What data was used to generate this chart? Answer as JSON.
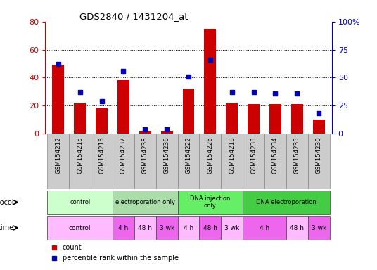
{
  "title": "GDS2840 / 1431204_at",
  "samples": [
    "GSM154212",
    "GSM154215",
    "GSM154216",
    "GSM154237",
    "GSM154238",
    "GSM154236",
    "GSM154222",
    "GSM154226",
    "GSM154218",
    "GSM154233",
    "GSM154234",
    "GSM154235",
    "GSM154230"
  ],
  "counts": [
    49,
    22,
    18,
    38,
    2,
    2,
    32,
    75,
    22,
    21,
    21,
    21,
    10
  ],
  "percentiles": [
    62,
    37,
    29,
    56,
    4,
    4,
    51,
    66,
    37,
    37,
    36,
    36,
    18
  ],
  "ylim_left": [
    0,
    80
  ],
  "ylim_right": [
    0,
    100
  ],
  "yticks_left": [
    0,
    20,
    40,
    60,
    80
  ],
  "yticks_right": [
    0,
    25,
    50,
    75,
    100
  ],
  "ytick_labels_right": [
    "0",
    "25",
    "50",
    "75",
    "100%"
  ],
  "bar_color": "#cc0000",
  "dot_color": "#0000bb",
  "protocol_groups": [
    {
      "label": "control",
      "start": 0,
      "end": 3,
      "color": "#ccffcc"
    },
    {
      "label": "electroporation only",
      "start": 3,
      "end": 6,
      "color": "#aaddaa"
    },
    {
      "label": "DNA injection\nonly",
      "start": 6,
      "end": 9,
      "color": "#66ee66"
    },
    {
      "label": "DNA electroporation",
      "start": 9,
      "end": 13,
      "color": "#44cc44"
    }
  ],
  "time_groups": [
    {
      "label": "control",
      "start": 0,
      "end": 3,
      "color": "#ffbbff"
    },
    {
      "label": "4 h",
      "start": 3,
      "end": 4,
      "color": "#ee66ee"
    },
    {
      "label": "48 h",
      "start": 4,
      "end": 5,
      "color": "#ffbbff"
    },
    {
      "label": "3 wk",
      "start": 5,
      "end": 6,
      "color": "#ee66ee"
    },
    {
      "label": "4 h",
      "start": 6,
      "end": 7,
      "color": "#ffbbff"
    },
    {
      "label": "48 h",
      "start": 7,
      "end": 8,
      "color": "#ee66ee"
    },
    {
      "label": "3 wk",
      "start": 8,
      "end": 9,
      "color": "#ffbbff"
    },
    {
      "label": "4 h",
      "start": 9,
      "end": 11,
      "color": "#ee66ee"
    },
    {
      "label": "48 h",
      "start": 11,
      "end": 12,
      "color": "#ffbbff"
    },
    {
      "label": "3 wk",
      "start": 12,
      "end": 13,
      "color": "#ee66ee"
    }
  ],
  "bg_color": "#ffffff",
  "tick_label_color_left": "#cc0000",
  "tick_label_color_right": "#0000bb",
  "label_area_color": "#cccccc"
}
